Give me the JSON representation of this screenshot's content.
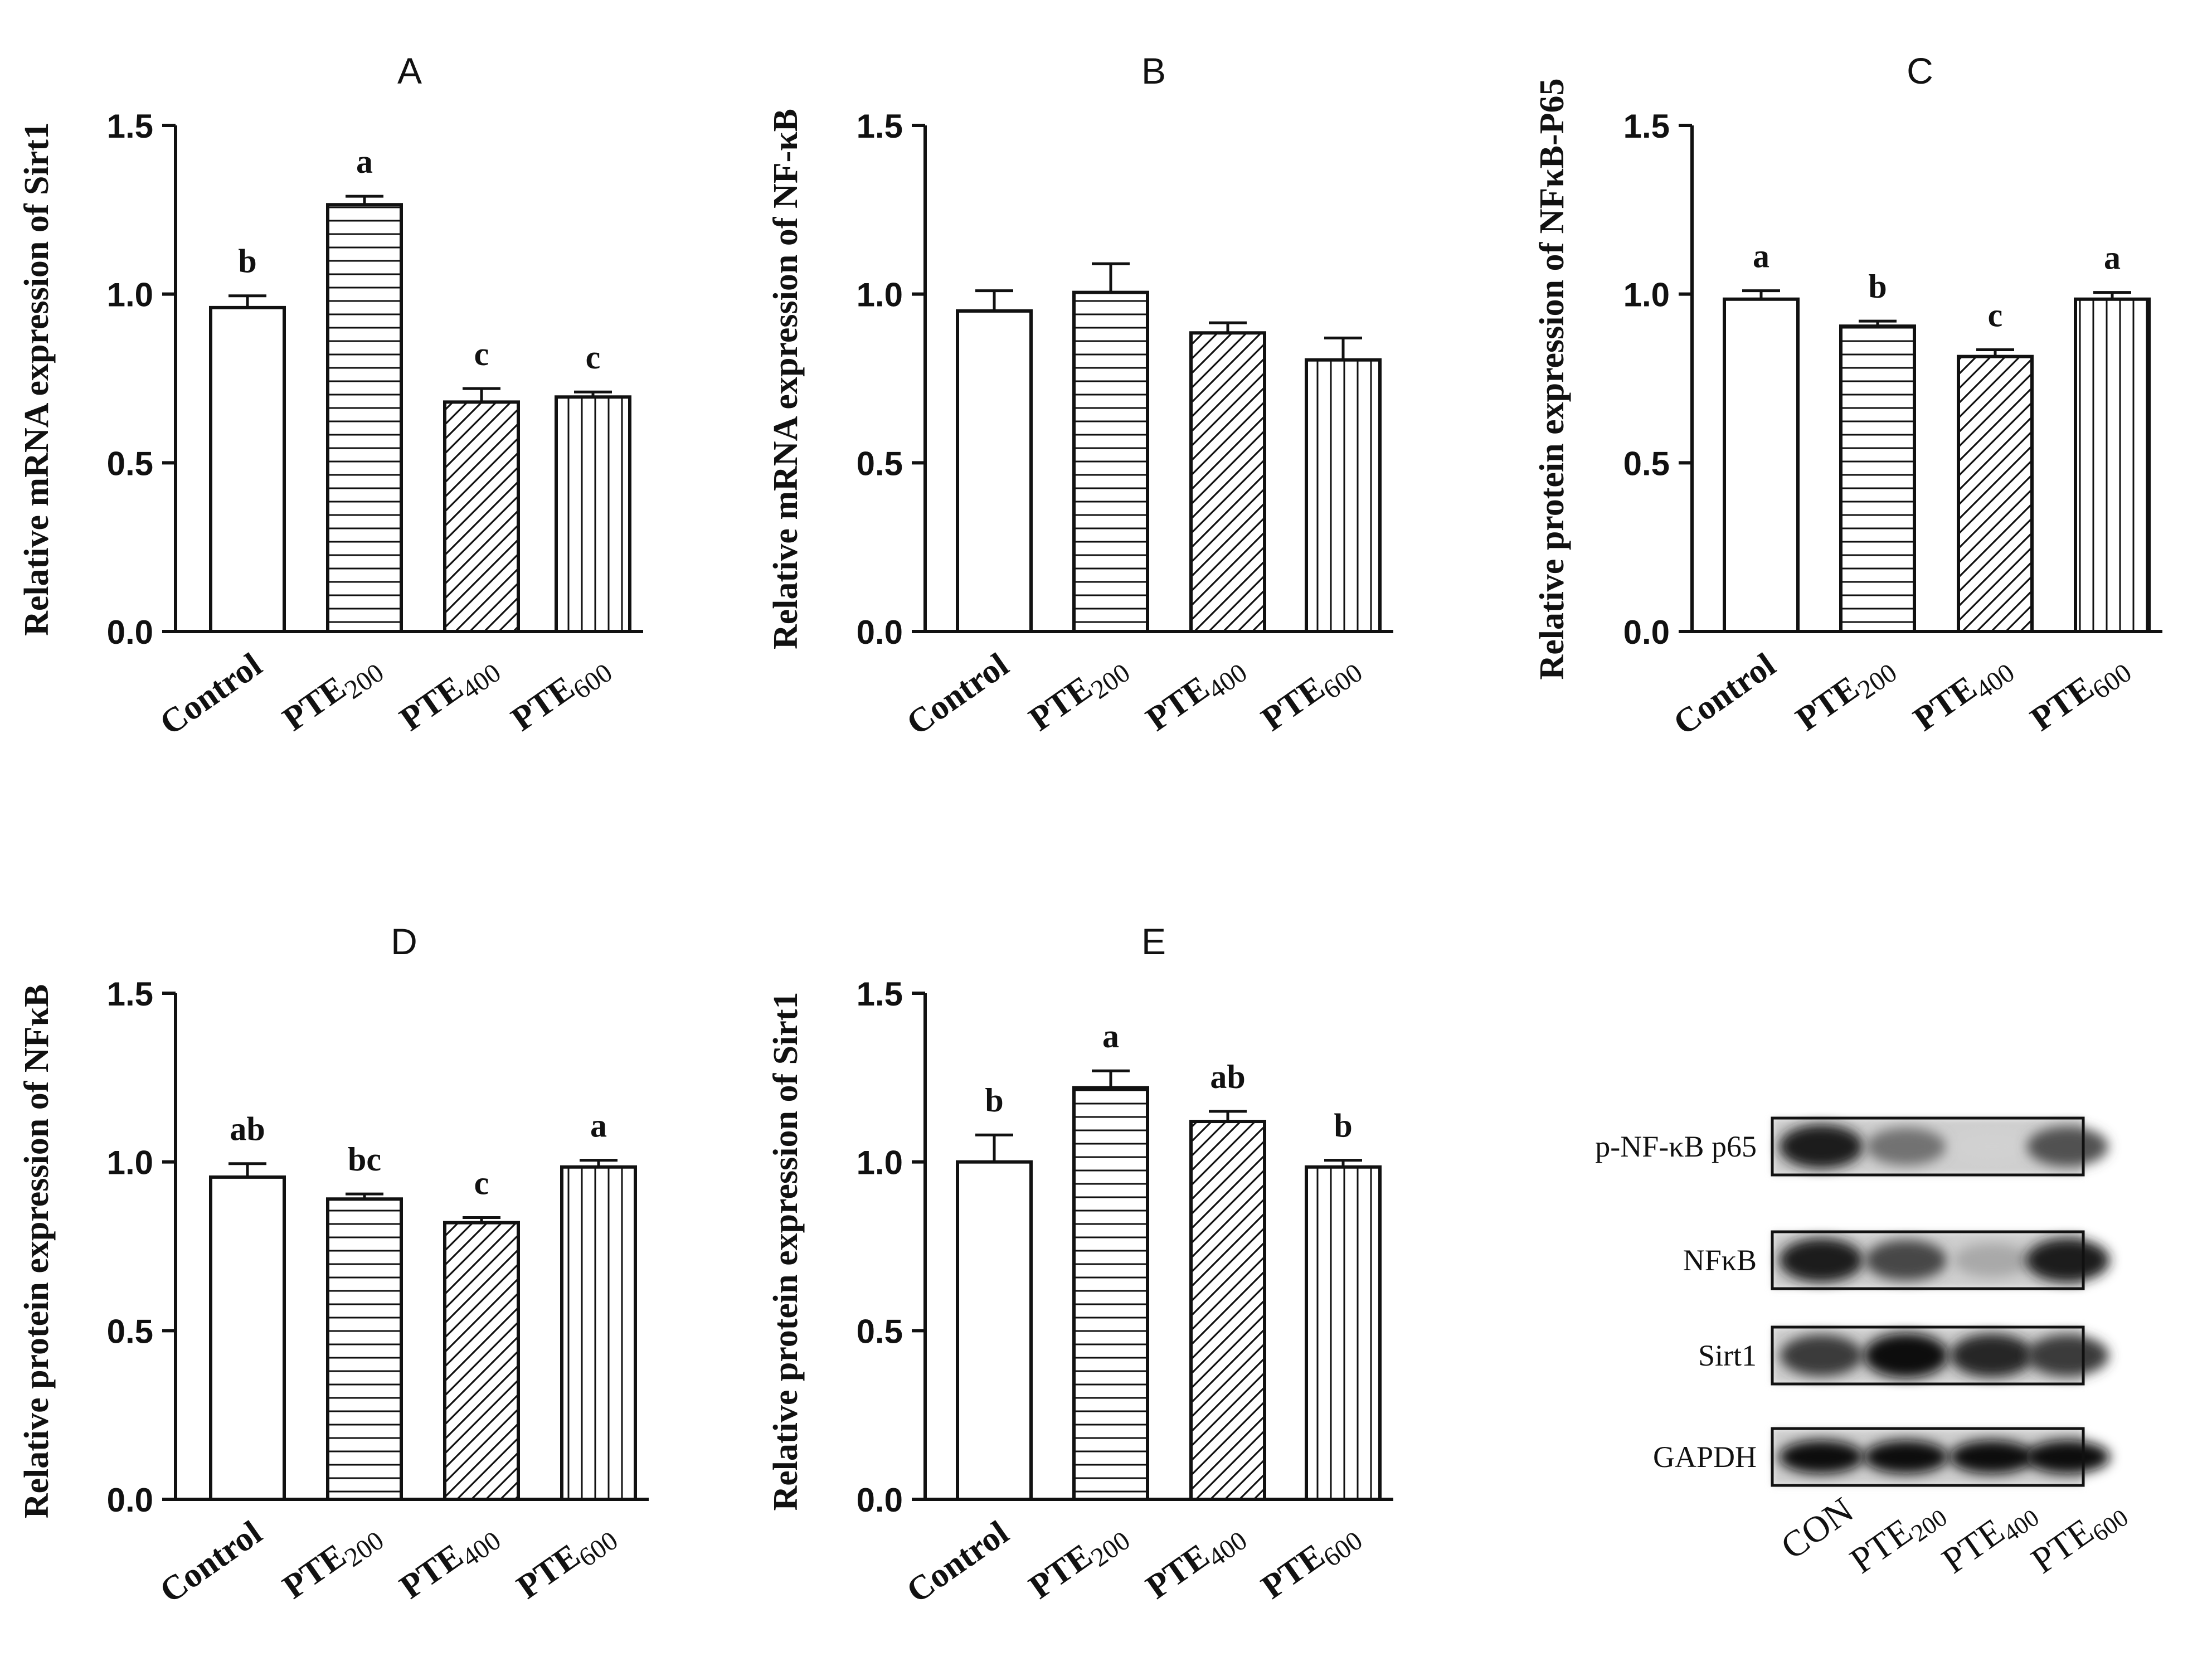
{
  "figure": {
    "description": "Multi-panel bar charts of Sirt1 / NF-kB expression with western blot"
  },
  "colors": {
    "ink": "#111111",
    "bar_fill": "#ffffff",
    "blot_bg": "#dcdcdc",
    "band": "#1a1a1a"
  },
  "patterns": {
    "Control": "none",
    "PTE200": "horizontal",
    "PTE400": "diagonal",
    "PTE600": "vertical"
  },
  "chart_data": [
    {
      "id": "A",
      "type": "bar",
      "title": "A",
      "ylabel": "Relative mRNA expression of Sirt1",
      "ylim": [
        0,
        1.5
      ],
      "yticks": [
        "0.0",
        "0.5",
        "1.0",
        "1.5"
      ],
      "categories": [
        {
          "base": "Control",
          "sub": ""
        },
        {
          "base": "PTE",
          "sub": "200"
        },
        {
          "base": "PTE",
          "sub": "400"
        },
        {
          "base": "PTE",
          "sub": "600"
        }
      ],
      "values": [
        0.96,
        1.265,
        0.68,
        0.695
      ],
      "errors": [
        0.035,
        0.025,
        0.04,
        0.015
      ],
      "letters": [
        "b",
        "a",
        "c",
        "c"
      ]
    },
    {
      "id": "B",
      "type": "bar",
      "title": "B",
      "ylabel": "Relative mRNA expression of NF-κB",
      "ylim": [
        0,
        1.5
      ],
      "yticks": [
        "0.0",
        "0.5",
        "1.0",
        "1.5"
      ],
      "categories": [
        {
          "base": "Control",
          "sub": ""
        },
        {
          "base": "PTE",
          "sub": "200"
        },
        {
          "base": "PTE",
          "sub": "400"
        },
        {
          "base": "PTE",
          "sub": "600"
        }
      ],
      "values": [
        0.95,
        1.005,
        0.885,
        0.805
      ],
      "errors": [
        0.06,
        0.085,
        0.03,
        0.065
      ],
      "letters": [
        "",
        "",
        "",
        ""
      ]
    },
    {
      "id": "C",
      "type": "bar",
      "title": "C",
      "ylabel": "Relative protein expression of NFκB-P65",
      "ylim": [
        0,
        1.5
      ],
      "yticks": [
        "0.0",
        "0.5",
        "1.0",
        "1.5"
      ],
      "categories": [
        {
          "base": "Control",
          "sub": ""
        },
        {
          "base": "PTE",
          "sub": "200"
        },
        {
          "base": "PTE",
          "sub": "400"
        },
        {
          "base": "PTE",
          "sub": "600"
        }
      ],
      "values": [
        0.985,
        0.905,
        0.815,
        0.985
      ],
      "errors": [
        0.025,
        0.015,
        0.02,
        0.02
      ],
      "letters": [
        "a",
        "b",
        "c",
        "a"
      ]
    },
    {
      "id": "D",
      "type": "bar",
      "title": "D",
      "ylabel": "Relative protein expression of NFκB",
      "ylim": [
        0,
        1.5
      ],
      "yticks": [
        "0.0",
        "0.5",
        "1.0",
        "1.5"
      ],
      "categories": [
        {
          "base": "Control",
          "sub": ""
        },
        {
          "base": "PTE",
          "sub": "200"
        },
        {
          "base": "PTE",
          "sub": "400"
        },
        {
          "base": "PTE",
          "sub": "600"
        }
      ],
      "values": [
        0.955,
        0.89,
        0.82,
        0.985
      ],
      "errors": [
        0.04,
        0.015,
        0.015,
        0.02
      ],
      "letters": [
        "ab",
        "bc",
        "c",
        "a"
      ]
    },
    {
      "id": "E",
      "type": "bar",
      "title": "E",
      "ylabel": "Relative protein expression of Sirt1",
      "ylim": [
        0,
        1.5
      ],
      "yticks": [
        "0.0",
        "0.5",
        "1.0",
        "1.5"
      ],
      "categories": [
        {
          "base": "Control",
          "sub": ""
        },
        {
          "base": "PTE",
          "sub": "200"
        },
        {
          "base": "PTE",
          "sub": "400"
        },
        {
          "base": "PTE",
          "sub": "600"
        }
      ],
      "values": [
        1.0,
        1.22,
        1.12,
        0.985
      ],
      "errors": [
        0.08,
        0.05,
        0.03,
        0.02
      ],
      "letters": [
        "b",
        "a",
        "ab",
        "b"
      ]
    }
  ],
  "blot": {
    "rows": [
      {
        "label": "p-NF-κB p65",
        "intensities": [
          0.95,
          0.55,
          0.12,
          0.7
        ]
      },
      {
        "label": "NFκB",
        "intensities": [
          0.95,
          0.75,
          0.3,
          0.95
        ]
      },
      {
        "label": "Sirt1",
        "intensities": [
          0.8,
          1.0,
          0.9,
          0.8
        ]
      },
      {
        "label": "GAPDH",
        "intensities": [
          1.0,
          1.0,
          1.0,
          1.0
        ]
      }
    ],
    "lanes": [
      {
        "base": "CON",
        "sub": ""
      },
      {
        "base": "PTE",
        "sub": "200"
      },
      {
        "base": "PTE",
        "sub": "400"
      },
      {
        "base": "PTE",
        "sub": "600"
      }
    ]
  }
}
